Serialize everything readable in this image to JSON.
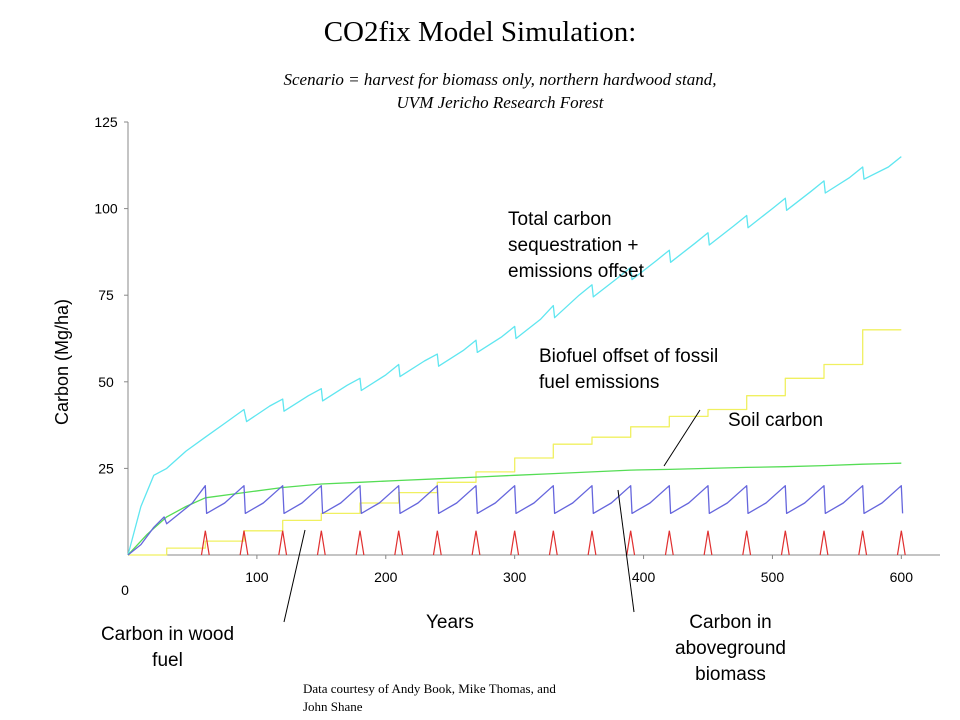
{
  "chart_data": {
    "type": "line",
    "title": "CO2fix Model Simulation:",
    "subtitle_line1": "Scenario = harvest for biomass only, northern hardwood stand,",
    "subtitle_line2": "UVM Jericho Research Forest",
    "xlabel": "Years",
    "ylabel": "Carbon (Mg/ha)",
    "xlim": [
      0,
      630
    ],
    "ylim": [
      0,
      125
    ],
    "x_ticks": [
      "100",
      "200",
      "300",
      "400",
      "500",
      "600"
    ],
    "x_zero_label": "0",
    "y_ticks": [
      "125",
      "100",
      "75",
      "50",
      "25"
    ],
    "grid": false,
    "series": [
      {
        "name": "Total carbon sequestration + emissions offset",
        "color": "#5fe6f0",
        "x": [
          0,
          10,
          20,
          30,
          45,
          60,
          75,
          90,
          92,
          110,
          120,
          121,
          140,
          150,
          151,
          170,
          180,
          181,
          200,
          210,
          211,
          230,
          240,
          241,
          260,
          270,
          271,
          290,
          300,
          301,
          320,
          330,
          331,
          350,
          360,
          361,
          380,
          390,
          391,
          410,
          420,
          421,
          440,
          450,
          451,
          470,
          480,
          481,
          500,
          510,
          511,
          530,
          540,
          541,
          560,
          570,
          571,
          590,
          600
        ],
        "y": [
          0,
          14,
          23,
          25,
          30,
          34,
          38,
          42,
          38.5,
          43,
          45,
          41.5,
          46,
          48,
          44.5,
          49,
          51,
          47.5,
          52,
          55,
          51.5,
          56,
          58,
          54.5,
          59,
          62,
          58.5,
          63,
          66,
          62.5,
          68,
          72,
          68.5,
          75,
          78,
          74.5,
          80,
          83,
          79.5,
          85,
          88,
          84.5,
          90,
          93,
          89.5,
          95,
          98,
          94.5,
          100,
          103,
          99.5,
          105,
          108,
          104.5,
          109,
          112,
          108.5,
          112,
          115
        ]
      },
      {
        "name": "Biofuel offset of fossil fuel emissions",
        "color": "#f0f060",
        "x": [
          0,
          30,
          30,
          60,
          60,
          90,
          90,
          120,
          120,
          150,
          150,
          180,
          180,
          210,
          210,
          240,
          240,
          270,
          270,
          300,
          300,
          330,
          330,
          360,
          360,
          390,
          390,
          420,
          420,
          450,
          450,
          480,
          480,
          510,
          510,
          540,
          540,
          570,
          570,
          600
        ],
        "y": [
          0,
          0,
          2,
          2,
          4,
          4,
          7,
          7,
          10,
          10,
          12,
          12,
          15,
          15,
          18,
          18,
          21,
          21,
          24,
          24,
          28,
          28,
          32,
          32,
          34,
          34,
          37,
          37,
          40,
          40,
          42,
          42,
          46,
          46,
          51,
          51,
          55,
          55,
          65,
          65
        ]
      },
      {
        "name": "Soil carbon",
        "color": "#55dd55",
        "x": [
          0,
          15,
          30,
          45,
          60,
          90,
          120,
          150,
          180,
          210,
          240,
          270,
          300,
          330,
          360,
          390,
          420,
          450,
          480,
          510,
          540,
          570,
          600
        ],
        "y": [
          0,
          6,
          11,
          14,
          16.5,
          18,
          19.5,
          20.5,
          21,
          21.5,
          22,
          22.5,
          23,
          23.5,
          24,
          24.5,
          24.7,
          25,
          25.3,
          25.5,
          25.8,
          26.2,
          26.5
        ]
      },
      {
        "name": "Carbon in aboveground biomass",
        "color": "#6666dd",
        "x": [
          0,
          10,
          20,
          28,
          30,
          40,
          50,
          60,
          61,
          75,
          90,
          91,
          105,
          120,
          121,
          135,
          150,
          151,
          165,
          180,
          181,
          195,
          210,
          211,
          225,
          240,
          241,
          255,
          270,
          271,
          285,
          300,
          301,
          315,
          330,
          331,
          345,
          360,
          361,
          375,
          390,
          391,
          405,
          420,
          421,
          435,
          450,
          451,
          465,
          480,
          481,
          495,
          510,
          511,
          525,
          540,
          541,
          555,
          570,
          571,
          585,
          600,
          601
        ],
        "y": [
          0,
          3,
          8,
          11,
          9,
          12,
          15,
          20,
          12,
          15,
          20,
          12,
          15,
          20,
          12,
          15,
          20,
          12,
          15,
          20,
          12,
          15,
          20,
          12,
          15,
          20,
          12,
          15,
          20,
          12,
          15,
          20,
          12,
          15,
          20,
          12,
          15,
          20,
          12,
          15,
          20,
          12,
          15,
          20,
          12,
          15,
          20,
          12,
          15,
          20,
          12,
          15,
          20,
          12,
          15,
          20,
          12,
          15,
          20,
          12,
          15,
          20,
          12
        ]
      },
      {
        "name": "Carbon in wood fuel",
        "color": "#e03030",
        "harvest_x": [
          60,
          90,
          120,
          150,
          180,
          210,
          240,
          270,
          300,
          330,
          360,
          390,
          420,
          450,
          480,
          510,
          540,
          570,
          600
        ],
        "peak": 7
      }
    ]
  },
  "annotations": {
    "total_l1": "Total carbon",
    "total_l2": "sequestration +",
    "total_l3": "emissions offset",
    "biofuel_l1": "Biofuel offset of fossil",
    "biofuel_l2": "fuel emissions",
    "soil": "Soil carbon",
    "woodfuel_l1": "Carbon in wood",
    "woodfuel_l2": "fuel",
    "biomass_l1": "Carbon in",
    "biomass_l2": "aboveground",
    "biomass_l3": "biomass"
  },
  "credit_l1": "Data courtesy of Andy Book, Mike Thomas, and",
  "credit_l2": "John Shane"
}
